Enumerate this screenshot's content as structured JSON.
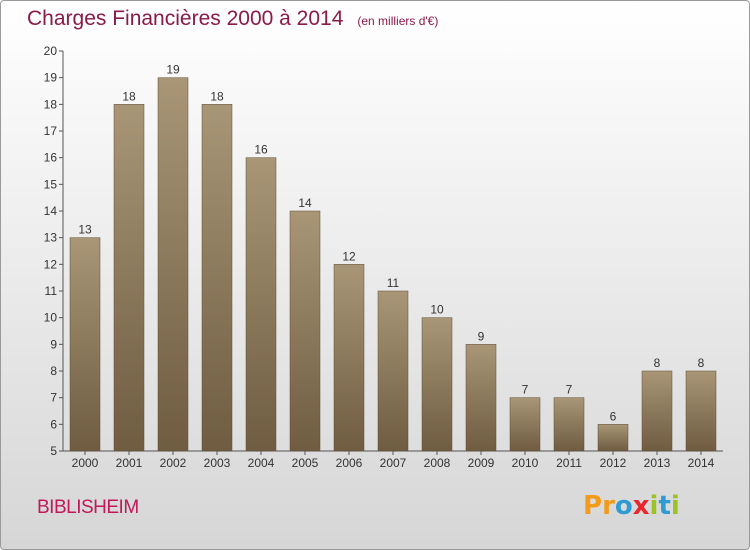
{
  "header": {
    "title": "Charges Financières 2000 à 2014",
    "subtitle": "(en milliers d'€)"
  },
  "footer": {
    "commune": "BIBLISHEIM",
    "logo_letters": [
      "P",
      "r",
      "o",
      "x",
      "i",
      "t",
      "i"
    ],
    "logo_colors": [
      "#f29b1a",
      "#f29b1a",
      "#2f9bd3",
      "#e8262d",
      "#9cc326",
      "#2f9bd3",
      "#9cc326"
    ]
  },
  "colors": {
    "bar_light": "#a89677",
    "bar_dark": "#6f5c41",
    "text": "#8a1a4a",
    "axis": "#555555"
  },
  "chart_data": {
    "type": "bar",
    "categories": [
      "2000",
      "2001",
      "2002",
      "2003",
      "2004",
      "2005",
      "2006",
      "2007",
      "2008",
      "2009",
      "2010",
      "2011",
      "2012",
      "2013",
      "2014"
    ],
    "values": [
      13,
      18,
      19,
      18,
      16,
      14,
      12,
      11,
      10,
      9,
      7,
      7,
      6,
      8,
      8
    ],
    "ylim": [
      5,
      20
    ],
    "yticks": [
      5,
      6,
      7,
      8,
      9,
      10,
      11,
      12,
      13,
      14,
      15,
      16,
      17,
      18,
      19,
      20
    ],
    "grid": false,
    "title": "Charges Financières 2000 à 2014",
    "subtitle": "(en milliers d'€)"
  }
}
